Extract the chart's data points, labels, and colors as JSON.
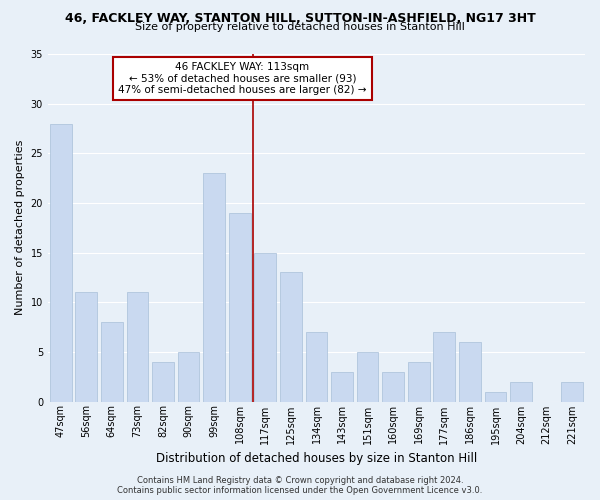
{
  "title": "46, FACKLEY WAY, STANTON HILL, SUTTON-IN-ASHFIELD, NG17 3HT",
  "subtitle": "Size of property relative to detached houses in Stanton Hill",
  "xlabel": "Distribution of detached houses by size in Stanton Hill",
  "ylabel": "Number of detached properties",
  "categories": [
    "47sqm",
    "56sqm",
    "64sqm",
    "73sqm",
    "82sqm",
    "90sqm",
    "99sqm",
    "108sqm",
    "117sqm",
    "125sqm",
    "134sqm",
    "143sqm",
    "151sqm",
    "160sqm",
    "169sqm",
    "177sqm",
    "186sqm",
    "195sqm",
    "204sqm",
    "212sqm",
    "221sqm"
  ],
  "values": [
    28,
    11,
    8,
    11,
    4,
    5,
    23,
    19,
    15,
    13,
    7,
    3,
    5,
    3,
    4,
    7,
    6,
    1,
    2,
    0,
    2
  ],
  "bar_color": "#c9d9f0",
  "bar_edge_color": "#a8bfd8",
  "bg_color": "#e8f0f8",
  "grid_color": "#ffffff",
  "vline_x": 7.5,
  "vline_color": "#aa0000",
  "annotation_text": "46 FACKLEY WAY: 113sqm\n← 53% of detached houses are smaller (93)\n47% of semi-detached houses are larger (82) →",
  "annotation_box_color": "#ffffff",
  "annotation_box_edge_color": "#aa0000",
  "footnote": "Contains HM Land Registry data © Crown copyright and database right 2024.\nContains public sector information licensed under the Open Government Licence v3.0.",
  "ylim": [
    0,
    35
  ],
  "yticks": [
    0,
    5,
    10,
    15,
    20,
    25,
    30,
    35
  ],
  "title_fontsize": 9,
  "subtitle_fontsize": 8,
  "ylabel_fontsize": 8,
  "xlabel_fontsize": 8.5,
  "tick_fontsize": 7,
  "ann_fontsize": 7.5,
  "footnote_fontsize": 6
}
